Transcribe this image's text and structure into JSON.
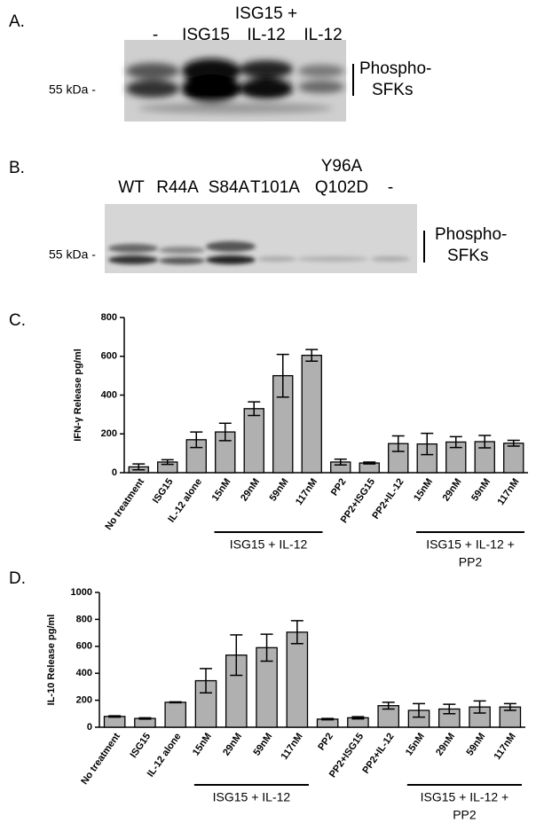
{
  "panels": [
    {
      "label": "A.",
      "lanes": [
        [
          "-"
        ],
        [
          "ISG15"
        ],
        [
          "ISG15 +",
          "IL-12"
        ],
        [
          "IL-12"
        ]
      ],
      "marker": "55 kDa -",
      "band_label": [
        "Phospho-",
        "SFKs"
      ]
    },
    {
      "label": "B.",
      "lanes": [
        [
          "WT"
        ],
        [
          "R44A"
        ],
        [
          "S84A"
        ],
        [
          "T101A"
        ],
        [
          "Y96A",
          "Q102D"
        ],
        [
          "-"
        ]
      ],
      "marker": "55 kDa -",
      "band_label": [
        "Phospho-",
        "SFKs"
      ]
    }
  ],
  "chart_data": [
    {
      "type": "bar",
      "panel_label": "C.",
      "ylabel": "IFN-γ Release pg/ml",
      "categories": [
        "No treatment",
        "ISG15",
        "IL-12 alone",
        "15nM",
        "29nM",
        "59nM",
        "117nM",
        "PP2",
        "PP2+ISG15",
        "PP2+IL-12",
        "15nM",
        "29nM",
        "59nM",
        "117nM"
      ],
      "values": [
        30,
        55,
        170,
        210,
        330,
        500,
        605,
        55,
        50,
        150,
        148,
        158,
        160,
        152
      ],
      "errors": [
        15,
        12,
        40,
        45,
        35,
        110,
        30,
        15,
        5,
        40,
        55,
        28,
        32,
        15
      ],
      "color": "#b0b0b0",
      "ylim": [
        0,
        800
      ],
      "yticks": [
        0,
        200,
        400,
        600,
        800
      ],
      "group_labels": [
        [
          "ISG15 + IL-12"
        ],
        [
          "ISG15 + IL-12 +",
          "PP2"
        ]
      ]
    },
    {
      "type": "bar",
      "panel_label": "D.",
      "ylabel": "IL-10 Release pg/ml",
      "categories": [
        "No treatment",
        "ISG15",
        "IL-12 alone",
        "15nM",
        "29nM",
        "59nM",
        "117nM",
        "PP2",
        "PP2+ISG15",
        "PP2+IL-12",
        "15nM",
        "29nM",
        "59nM",
        "117nM"
      ],
      "values": [
        80,
        65,
        185,
        345,
        535,
        590,
        705,
        60,
        70,
        160,
        125,
        135,
        150,
        150
      ],
      "errors": [
        5,
        5,
        3,
        90,
        150,
        100,
        85,
        5,
        8,
        25,
        50,
        35,
        45,
        25
      ],
      "color": "#b0b0b0",
      "ylim": [
        0,
        1000
      ],
      "yticks": [
        0,
        200,
        400,
        600,
        800,
        1000
      ],
      "group_labels": [
        [
          "ISG15 + IL-12"
        ],
        [
          "ISG15 + IL-12 +",
          "PP2"
        ]
      ]
    }
  ]
}
